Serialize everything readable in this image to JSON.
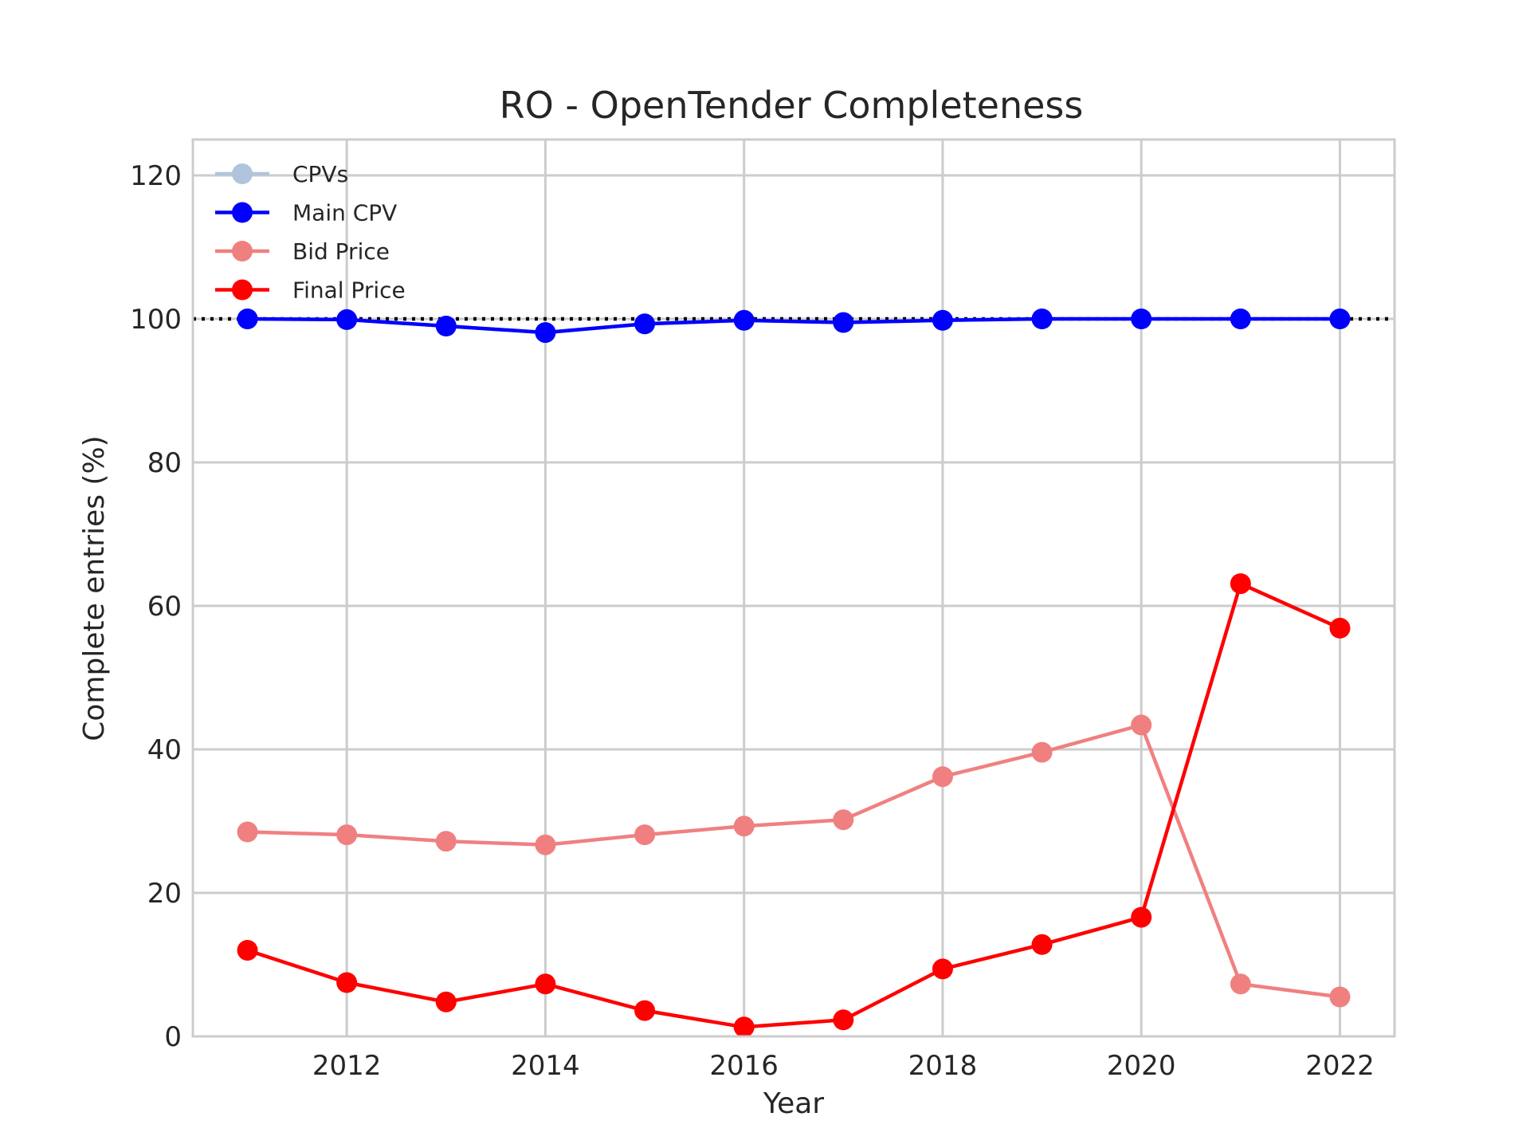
{
  "chart_data": {
    "type": "line",
    "title": "RO - OpenTender Completeness",
    "xlabel": "Year",
    "ylabel": "Complete entries (%)",
    "xlim": [
      2010.45,
      2022.55
    ],
    "ylim": [
      0,
      125
    ],
    "xticks": [
      2012,
      2014,
      2016,
      2018,
      2020,
      2022
    ],
    "yticks": [
      0,
      20,
      40,
      60,
      80,
      100,
      120
    ],
    "grid": true,
    "legend_position": "top-left",
    "reference_line": {
      "y": 100,
      "style": "dotted",
      "color": "#000000"
    },
    "x": [
      2011,
      2012,
      2013,
      2014,
      2015,
      2016,
      2017,
      2018,
      2019,
      2020,
      2021,
      2022
    ],
    "series": [
      {
        "name": "CPVs",
        "color": "#b0c4de",
        "values": [
          100,
          99.9,
          99.0,
          98.1,
          99.3,
          99.8,
          99.5,
          99.8,
          100,
          100,
          100,
          100
        ]
      },
      {
        "name": "Main CPV",
        "color": "#0000ff",
        "values": [
          100,
          99.9,
          99.0,
          98.1,
          99.3,
          99.8,
          99.5,
          99.8,
          100,
          100,
          100,
          100
        ]
      },
      {
        "name": "Bid Price",
        "color": "#f08080",
        "values": [
          28.5,
          28.1,
          27.2,
          26.7,
          28.1,
          29.3,
          30.2,
          36.2,
          39.6,
          43.4,
          7.3,
          5.5
        ]
      },
      {
        "name": "Final Price",
        "color": "#ff0000",
        "values": [
          12.0,
          7.5,
          4.8,
          7.3,
          3.6,
          1.3,
          2.3,
          9.4,
          12.8,
          16.6,
          63.1,
          56.9
        ]
      }
    ]
  }
}
